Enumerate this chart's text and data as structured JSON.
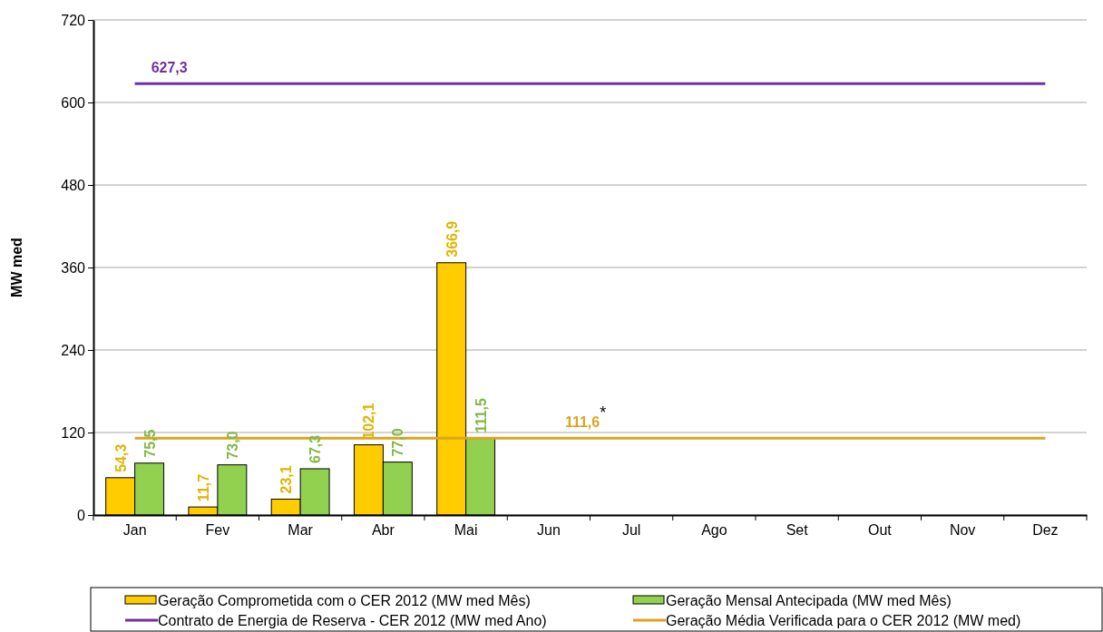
{
  "chart_data": {
    "type": "bar",
    "ylabel": "MW med",
    "categories": [
      "Jan",
      "Fev",
      "Mar",
      "Abr",
      "Mai",
      "Jun",
      "Jul",
      "Ago",
      "Set",
      "Out",
      "Nov",
      "Dez"
    ],
    "series": [
      {
        "name": "Geração Comprometida com o CER 2012 (MW med Mês)",
        "color": "#ffcc00",
        "values": [
          54.3,
          11.7,
          23.1,
          102.1,
          366.9,
          null,
          null,
          null,
          null,
          null,
          null,
          null
        ],
        "value_labels": [
          "54,3",
          "11,7",
          "23,1",
          "102,1",
          "366,9",
          null,
          null,
          null,
          null,
          null,
          null,
          null
        ]
      },
      {
        "name": "Geração Mensal Antecipada (MW med Mês)",
        "color": "#92d050",
        "values": [
          75.5,
          73.0,
          67.3,
          77.0,
          111.5,
          null,
          null,
          null,
          null,
          null,
          null,
          null
        ],
        "value_labels": [
          "75,5",
          "73,0",
          "67,3",
          "77,0",
          "111,5",
          null,
          null,
          null,
          null,
          null,
          null,
          null
        ]
      },
      {
        "name": "Contrato de Energia de Reserva - CER 2012 (MW med Ano)",
        "type": "line",
        "color": "#7030a0",
        "values": [
          627.3,
          627.3,
          627.3,
          627.3,
          627.3,
          627.3,
          627.3,
          627.3,
          627.3,
          627.3,
          627.3,
          627.3
        ],
        "value_labels": [
          "627,3",
          null,
          null,
          null,
          null,
          null,
          null,
          null,
          null,
          null,
          null,
          null
        ]
      },
      {
        "name": "Geração Média Verificada para o CER 2012 (MW med)",
        "type": "line",
        "color": "#daa520",
        "values": [
          111.6,
          111.6,
          111.6,
          111.6,
          111.6,
          111.6,
          111.6,
          111.6,
          111.6,
          111.6,
          111.6,
          111.6
        ],
        "value_labels": [
          null,
          null,
          null,
          null,
          null,
          "111,6$^{*}$",
          null,
          null,
          null,
          null,
          null,
          null
        ]
      }
    ],
    "ylim": [
      0,
      720
    ],
    "yticks": [
      0,
      120,
      240,
      360,
      480,
      600,
      720
    ],
    "grid": "y",
    "legend": "bottom",
    "marker": "none",
    "line_style": "solid"
  }
}
